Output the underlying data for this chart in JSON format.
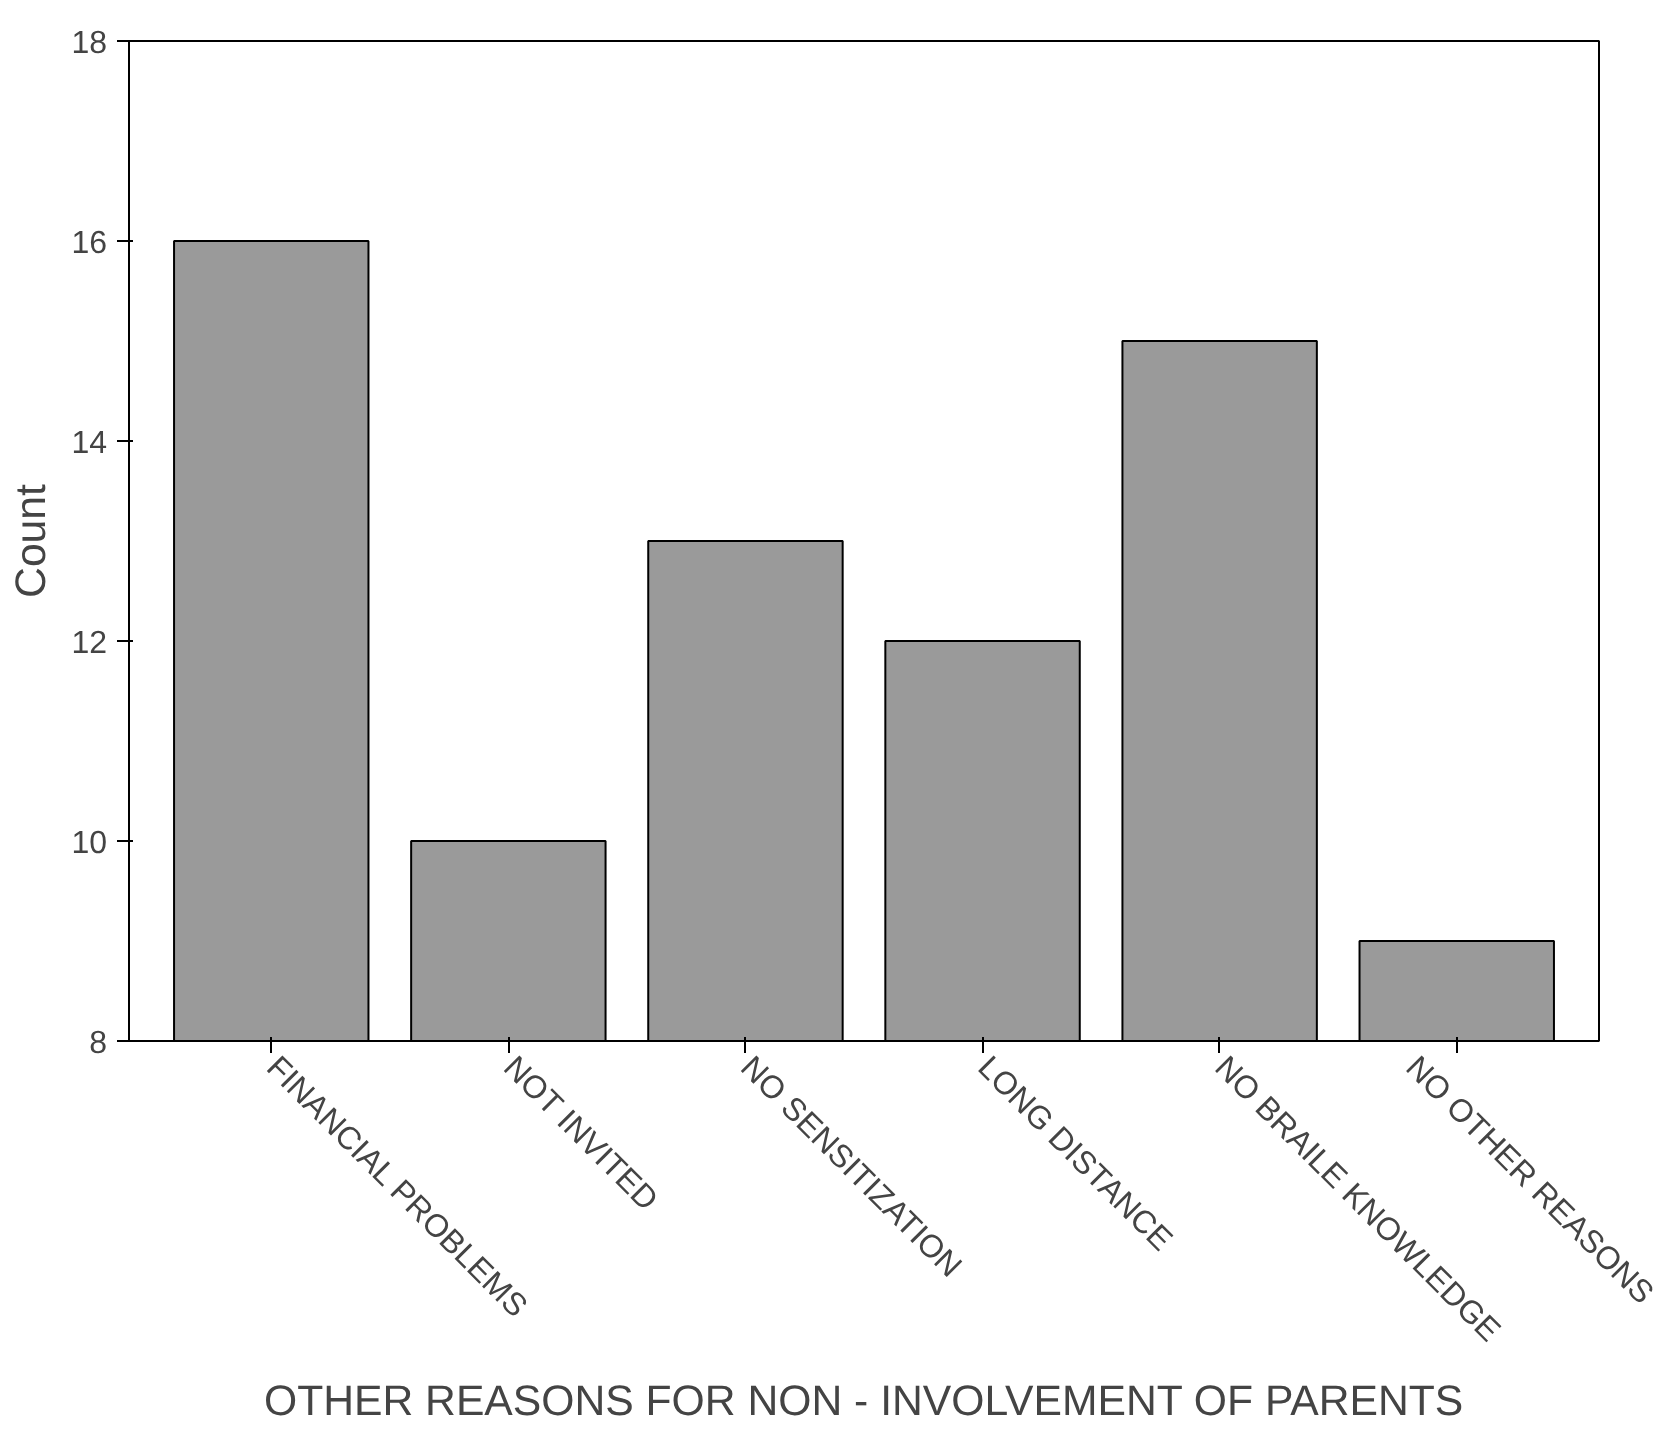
{
  "chart_data": {
    "type": "bar",
    "xlabel": "OTHER REASONS FOR NON - INVOLVEMENT OF PARENTS",
    "ylabel": "Count",
    "categories": [
      "FINANCIAL PROBLEMS",
      "NOT INVITED",
      "NO SENSITIZATION",
      "LONG DISTANCE",
      "NO BRAILE KNOWLEDGE",
      "NO OTHER REASONS"
    ],
    "values": [
      16,
      10,
      13,
      12,
      15,
      9
    ],
    "color": "#9a9a9a",
    "ylim": [
      8,
      18
    ],
    "yticks": [
      8,
      10,
      12,
      14,
      16,
      18
    ],
    "grid": false
  }
}
